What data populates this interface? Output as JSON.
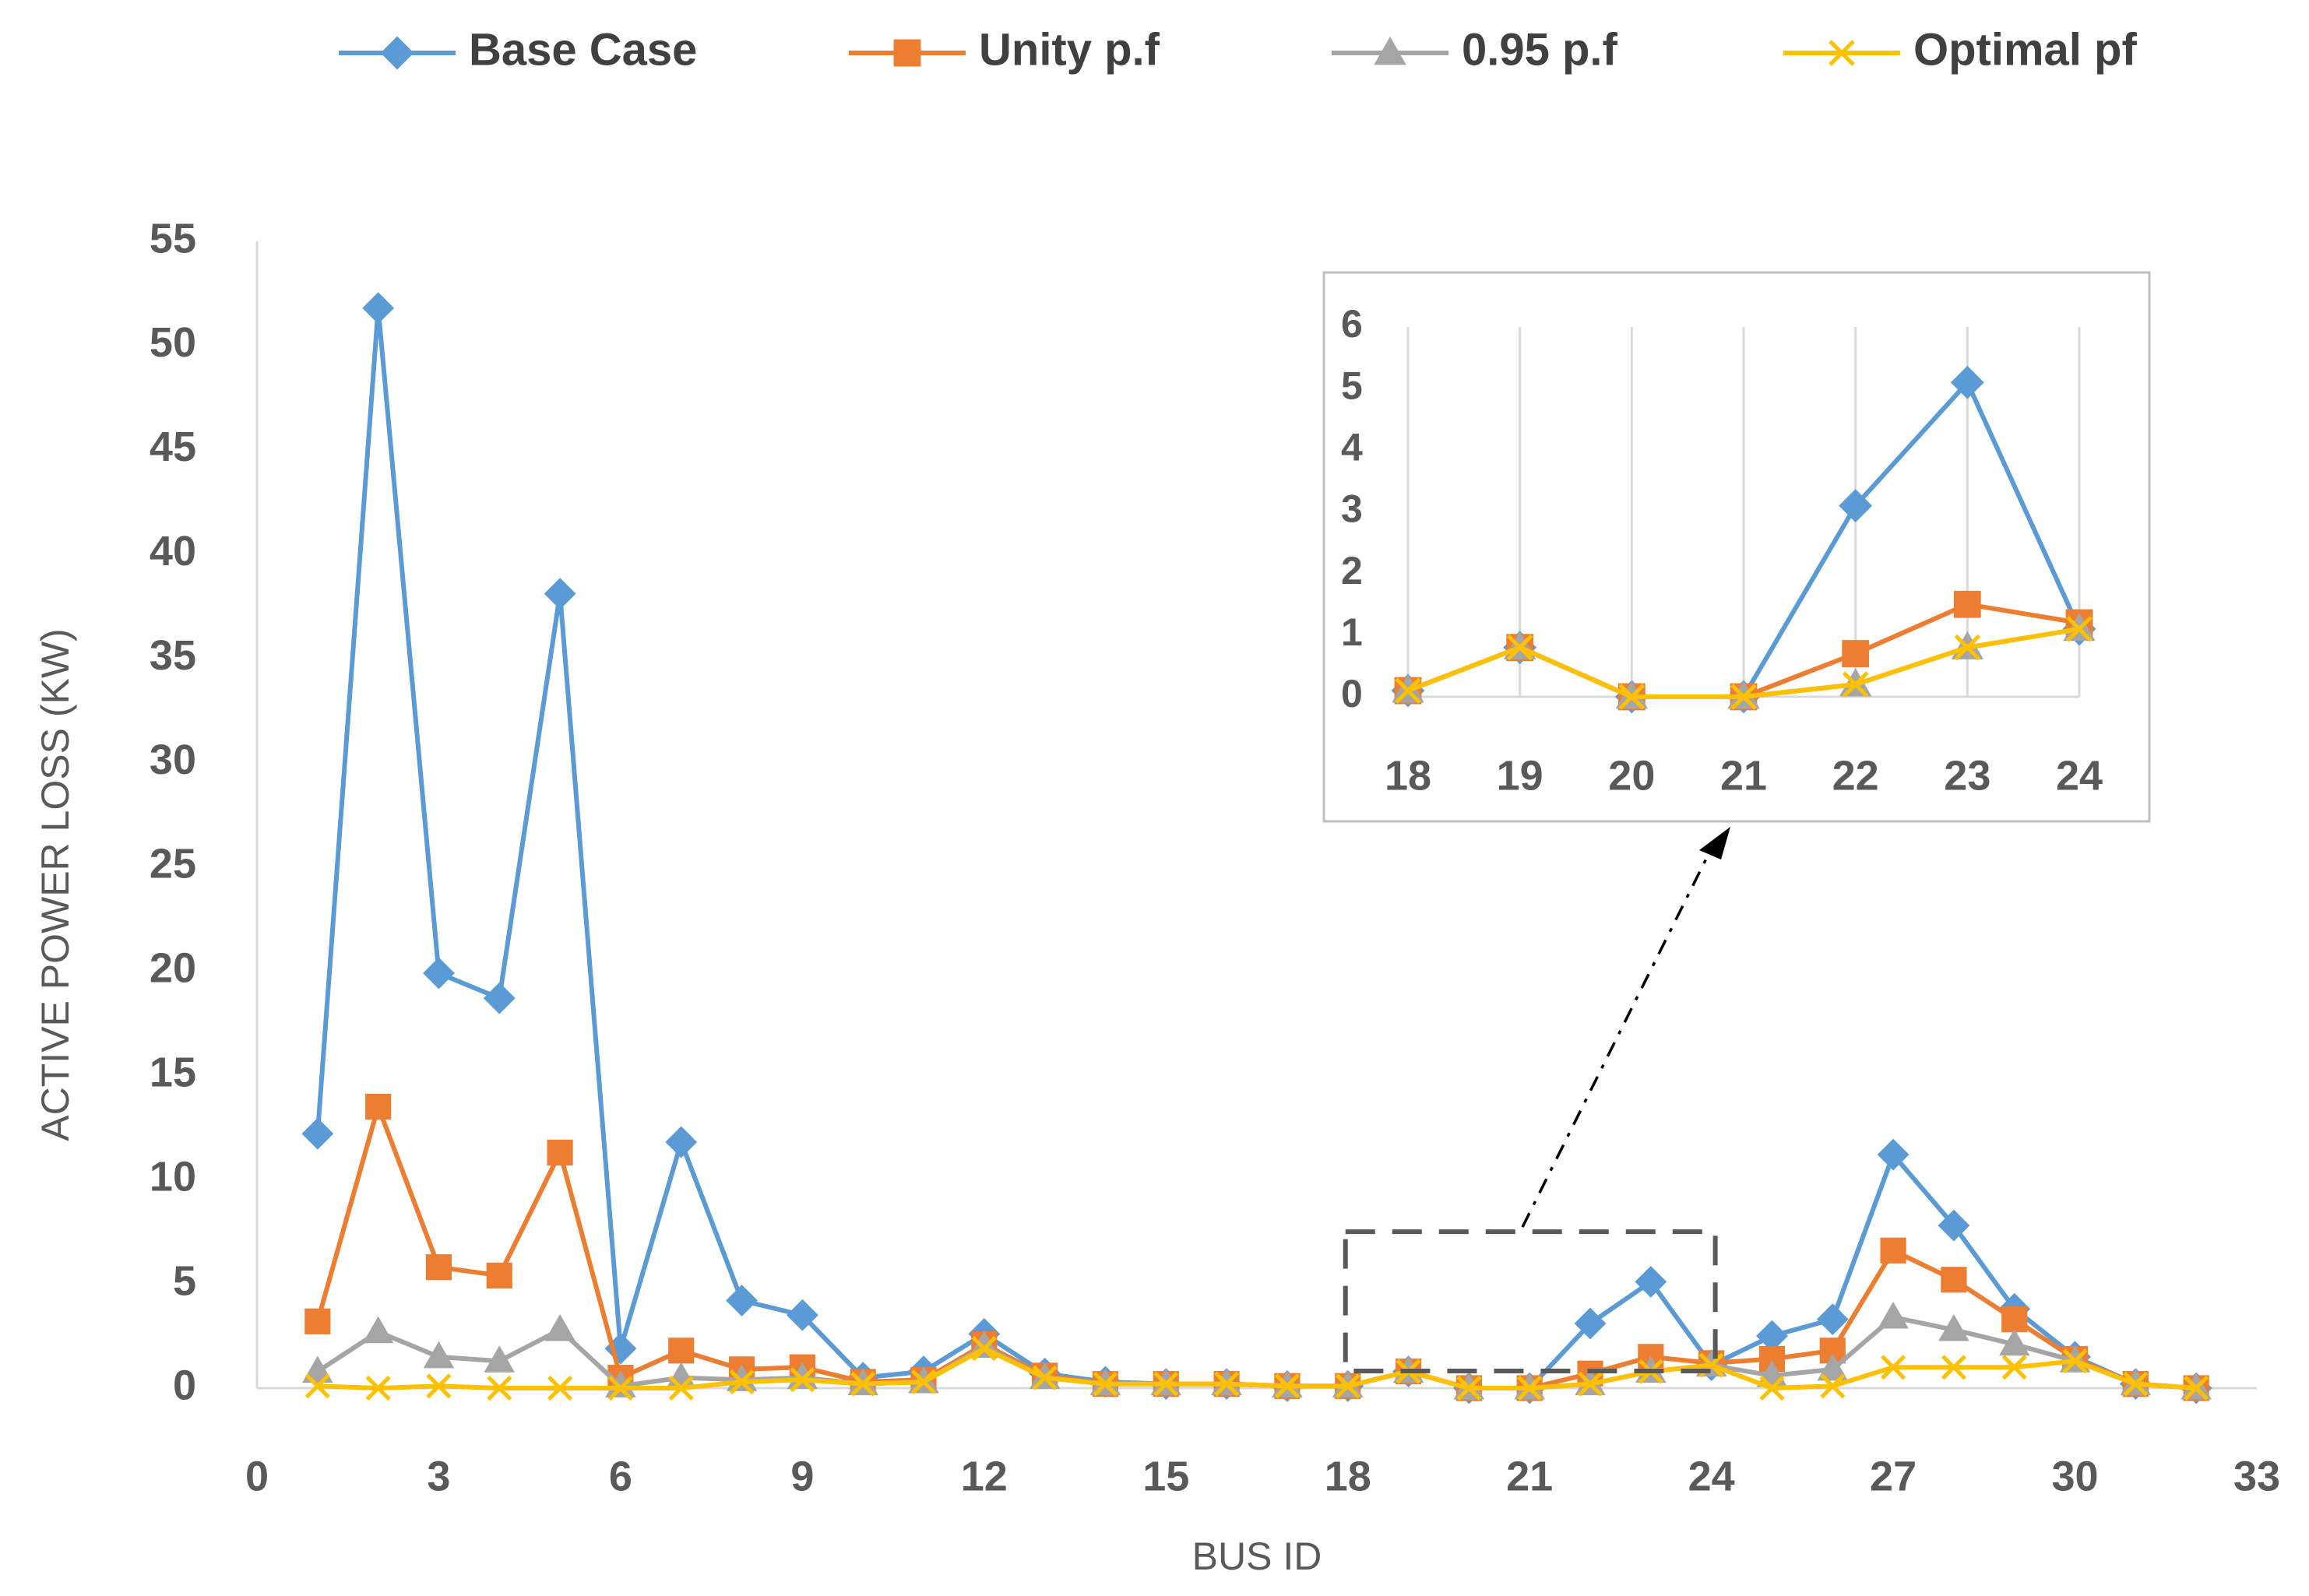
{
  "chart_data": {
    "type": "line",
    "xlabel": "BUS ID",
    "ylabel": "ACTIVE POWER LOSS (KW)",
    "xlim": [
      0,
      33
    ],
    "ylim": [
      0,
      55
    ],
    "xticks": [
      0,
      3,
      6,
      9,
      12,
      15,
      18,
      21,
      24,
      27,
      30,
      33
    ],
    "yticks": [
      0,
      5,
      10,
      15,
      20,
      25,
      30,
      35,
      40,
      45,
      50,
      55
    ],
    "x": [
      1,
      2,
      3,
      4,
      5,
      6,
      7,
      8,
      9,
      10,
      11,
      12,
      13,
      14,
      15,
      16,
      17,
      18,
      19,
      20,
      21,
      22,
      23,
      24,
      25,
      26,
      27,
      28,
      29,
      30,
      31,
      32
    ],
    "series": [
      {
        "name": "Base Case",
        "color": "#5B9BD5",
        "marker": "diamond",
        "values": [
          12.2,
          51.8,
          19.9,
          18.7,
          38.1,
          1.9,
          11.8,
          4.2,
          3.5,
          0.5,
          0.8,
          2.6,
          0.7,
          0.3,
          0.2,
          0.2,
          0.1,
          0.1,
          0.8,
          0.0,
          0.0,
          3.1,
          5.1,
          1.1,
          2.5,
          3.3,
          11.2,
          7.8,
          3.8,
          1.5,
          0.2,
          0.0
        ]
      },
      {
        "name": "Unity p.f",
        "color": "#ED7D31",
        "marker": "square",
        "values": [
          3.2,
          13.5,
          5.8,
          5.4,
          11.3,
          0.5,
          1.8,
          0.9,
          1.0,
          0.3,
          0.4,
          2.1,
          0.6,
          0.2,
          0.2,
          0.2,
          0.1,
          0.1,
          0.8,
          0.0,
          0.0,
          0.7,
          1.5,
          1.2,
          1.4,
          1.8,
          6.6,
          5.2,
          3.3,
          1.4,
          0.2,
          0.0
        ]
      },
      {
        "name": "0.95 p.f",
        "color": "#A5A5A5",
        "marker": "triangle",
        "values": [
          0.8,
          2.7,
          1.5,
          1.3,
          2.8,
          0.1,
          0.5,
          0.4,
          0.5,
          0.2,
          0.3,
          2.0,
          0.5,
          0.2,
          0.2,
          0.2,
          0.1,
          0.1,
          0.8,
          0.0,
          0.0,
          0.2,
          0.8,
          1.1,
          0.6,
          0.9,
          3.4,
          2.8,
          2.1,
          1.3,
          0.2,
          0.0
        ]
      },
      {
        "name": "Optimal pf",
        "color": "#FFC000",
        "marker": "x",
        "values": [
          0.1,
          0.0,
          0.1,
          0.0,
          0.0,
          0.0,
          0.0,
          0.3,
          0.4,
          0.2,
          0.3,
          1.9,
          0.5,
          0.2,
          0.2,
          0.2,
          0.1,
          0.1,
          0.8,
          0.0,
          0.0,
          0.2,
          0.8,
          1.1,
          0.0,
          0.1,
          1.0,
          1.0,
          1.0,
          1.3,
          0.2,
          0.0
        ]
      }
    ],
    "inset": {
      "x": [
        18,
        19,
        20,
        21,
        22,
        23,
        24
      ],
      "ylim": [
        0,
        6
      ],
      "yticks": [
        0,
        1,
        2,
        3,
        4,
        5,
        6
      ],
      "series": [
        {
          "name": "Base Case",
          "values": [
            0.1,
            0.8,
            0.0,
            0.0,
            3.1,
            5.1,
            1.1
          ]
        },
        {
          "name": "Unity p.f",
          "values": [
            0.1,
            0.8,
            0.0,
            0.0,
            0.7,
            1.5,
            1.2
          ]
        },
        {
          "name": "0.95 p.f",
          "values": [
            0.1,
            0.8,
            0.0,
            0.0,
            0.2,
            0.8,
            1.1
          ]
        },
        {
          "name": "Optimal pf",
          "values": [
            0.1,
            0.8,
            0.0,
            0.0,
            0.2,
            0.8,
            1.1
          ]
        }
      ]
    },
    "zoom_region": {
      "x_range": [
        18,
        24
      ],
      "y_range": [
        0,
        7.5
      ]
    },
    "legend_position": "top"
  }
}
